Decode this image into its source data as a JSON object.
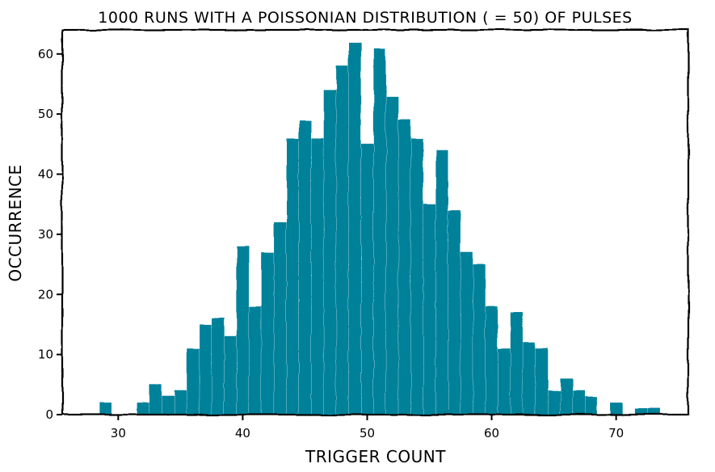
{
  "chart_data": {
    "type": "bar",
    "title": "1000 RUNS WITH A POISSONIAN DISTRIBUTION ( = 50) OF PULSES",
    "xlabel": "TRIGGER COUNT",
    "ylabel": "OCCURRENCE",
    "xlim": [
      25.5,
      75.8
    ],
    "ylim": [
      0,
      64
    ],
    "xticks": [
      30,
      40,
      50,
      60,
      70
    ],
    "yticks": [
      0,
      10,
      20,
      30,
      40,
      50,
      60
    ],
    "grid": false,
    "bar_color": "#00819a",
    "x": [
      29,
      30,
      31,
      32,
      33,
      34,
      35,
      36,
      37,
      38,
      39,
      40,
      41,
      42,
      43,
      44,
      45,
      46,
      47,
      48,
      49,
      50,
      51,
      52,
      53,
      54,
      55,
      56,
      57,
      58,
      59,
      60,
      61,
      62,
      63,
      64,
      65,
      66,
      67,
      68,
      69,
      70,
      71,
      72,
      73
    ],
    "values": [
      2,
      0,
      0,
      2,
      5,
      3,
      4,
      11,
      15,
      16,
      13,
      28,
      18,
      27,
      32,
      46,
      49,
      46,
      54,
      58,
      62,
      45,
      61,
      53,
      49,
      46,
      35,
      44,
      34,
      27,
      25,
      18,
      11,
      17,
      12,
      11,
      4,
      6,
      4,
      3,
      0,
      2,
      0,
      1,
      1
    ]
  }
}
